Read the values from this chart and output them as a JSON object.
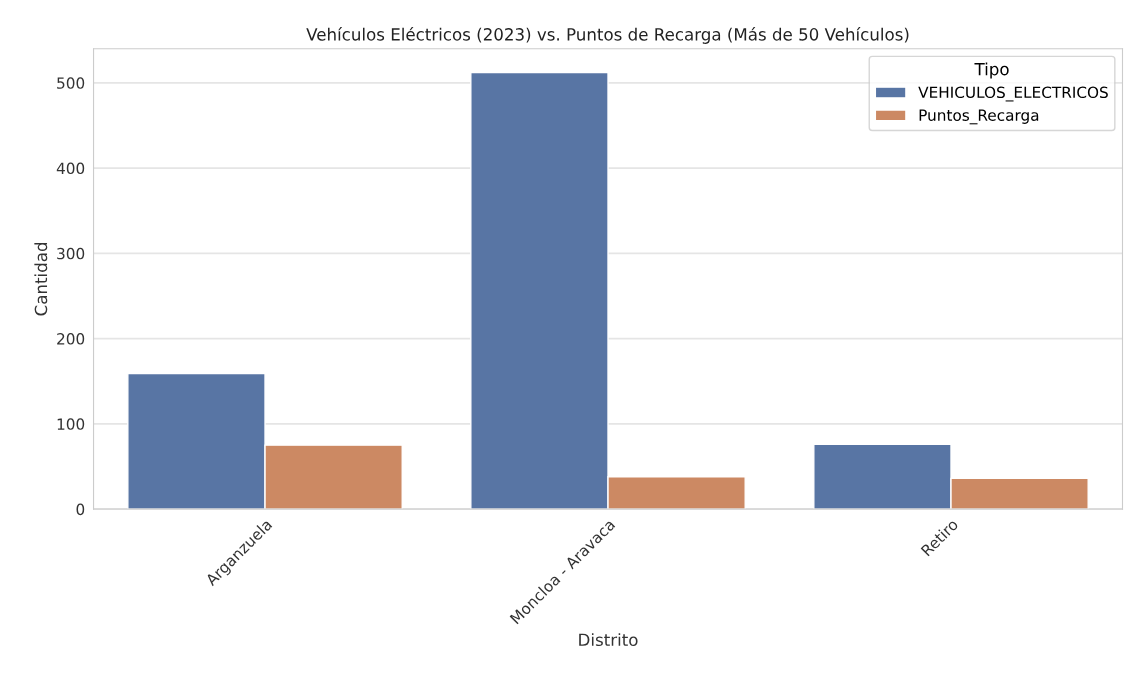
{
  "chart_data": {
    "type": "bar",
    "title": "Vehículos Eléctricos (2023) vs. Puntos de Recarga (Más de 50 Vehículos)",
    "xlabel": "Distrito",
    "ylabel": "Cantidad",
    "legend_title": "Tipo",
    "categories": [
      "Arganzuela",
      "Moncloa - Aravaca",
      "Retiro"
    ],
    "series": [
      {
        "name": "VEHICULOS_ELECTRICOS",
        "color": "#5875a4",
        "values": [
          159,
          512,
          76
        ]
      },
      {
        "name": "Puntos_Recarga",
        "color": "#cc8963",
        "values": [
          75,
          38,
          36
        ]
      }
    ],
    "ylim": [
      0,
      540
    ],
    "yticks": [
      0,
      100,
      200,
      300,
      400,
      500
    ],
    "grid": "y",
    "legend": "top right"
  }
}
